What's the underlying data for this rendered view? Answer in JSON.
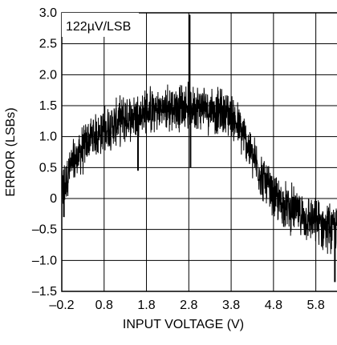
{
  "chart_data": {
    "type": "line",
    "annotation": "122µV/LSB",
    "xlabel": "INPUT VOLTAGE (V)",
    "ylabel": "ERROR (LSBs)",
    "xlim": [
      -0.2,
      6.3
    ],
    "ylim": [
      -1.5,
      3.0
    ],
    "x_ticks": [
      -0.2,
      0.8,
      1.8,
      2.8,
      3.8,
      4.8,
      5.8
    ],
    "x_tick_labels": [
      "–0.2",
      "0.8",
      "1.8",
      "2.8",
      "3.8",
      "4.8",
      "5.8"
    ],
    "y_ticks": [
      3.0,
      2.5,
      2.0,
      1.5,
      1.0,
      0.5,
      0,
      -0.5,
      -1.0,
      -1.5
    ],
    "y_tick_labels": [
      "3.0",
      "2.5",
      "2.0",
      "1.5",
      "1.0",
      "0.5",
      "0",
      "–0.5",
      "–1.0",
      "–1.5"
    ],
    "grid": true,
    "series": [
      {
        "color": "#000000",
        "description": "dense noisy band of error values",
        "center_trend": {
          "x": [
            -0.2,
            0.0,
            0.5,
            0.8,
            1.3,
            1.8,
            2.3,
            2.8,
            3.3,
            3.8,
            4.1,
            4.5,
            4.8,
            5.3,
            5.8,
            6.3
          ],
          "y": [
            0.1,
            0.5,
            1.0,
            1.1,
            1.3,
            1.4,
            1.45,
            1.5,
            1.45,
            1.35,
            1.0,
            0.4,
            0.0,
            -0.2,
            -0.4,
            -0.5
          ]
        },
        "band_halfwidth": 0.45,
        "spikes": [
          {
            "x": 2.82,
            "y": 2.97
          },
          {
            "x": 2.84,
            "y": 0.5
          },
          {
            "x": 1.6,
            "y": 0.45
          },
          {
            "x": 6.25,
            "y": -1.35
          },
          {
            "x": -0.15,
            "y": -0.3
          }
        ]
      }
    ]
  }
}
